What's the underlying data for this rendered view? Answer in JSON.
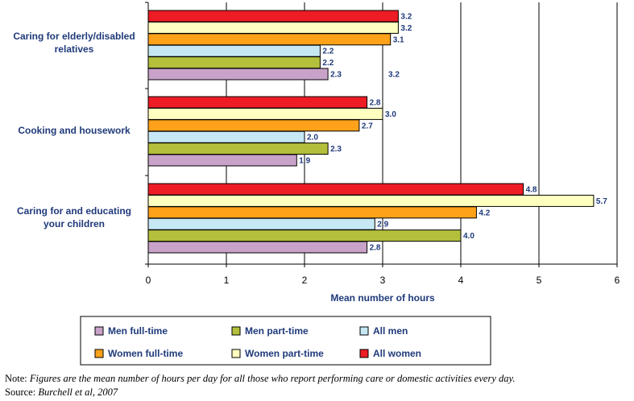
{
  "chart_data": {
    "type": "bar",
    "orientation": "horizontal",
    "categories": [
      [
        "Caring for elderly/disabled",
        "relatives"
      ],
      [
        "Cooking and housework"
      ],
      [
        "Caring for and educating",
        "your children"
      ]
    ],
    "series": [
      {
        "name": "All women",
        "color": "#ee1c25",
        "values": [
          3.2,
          2.8,
          4.8
        ]
      },
      {
        "name": "Women part-time",
        "color": "#ffffc0",
        "values": [
          3.2,
          3.0,
          5.7
        ]
      },
      {
        "name": "Women full-time",
        "color": "#ffa21a",
        "values": [
          3.1,
          2.7,
          4.2
        ]
      },
      {
        "name": "All men",
        "color": "#c6e8f5",
        "values": [
          2.2,
          2.0,
          2.9
        ]
      },
      {
        "name": "Men part-time",
        "color": "#b4bf3c",
        "values": [
          2.2,
          2.3,
          4.0
        ]
      },
      {
        "name": "Men full-time",
        "color": "#c8a2c8",
        "values": [
          2.3,
          1.9,
          2.8
        ]
      }
    ],
    "stray_labels": [
      {
        "category_index": 0,
        "text": "3.2"
      }
    ],
    "xlabel": "Mean number of hours",
    "xlim": [
      0,
      6
    ],
    "xticks": [
      "0",
      "1",
      "2",
      "3",
      "4",
      "5",
      "6"
    ],
    "grid": "vertical major gridlines",
    "legend_position": "bottom",
    "legend_order": [
      "Men full-time",
      "Men part-time",
      "All men",
      "Women full-time",
      "Women part-time",
      "All women"
    ]
  },
  "note": {
    "prefix": "Note: ",
    "text": "Figures are the mean number of hours per day for all those who report performing care or domestic activities every day."
  },
  "source": {
    "prefix": "Source: ",
    "text": "Burchell et al, 2007"
  }
}
